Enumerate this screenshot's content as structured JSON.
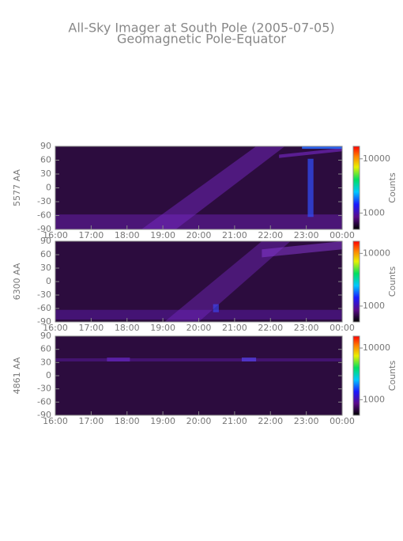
{
  "chart_data": [
    {
      "type": "heatmap",
      "title": "All-Sky Imager at South Pole (2005-07-05)",
      "subtitle": "Geomagnetic Pole-Equator",
      "ylabel": "5577 AA",
      "xlim": [
        16,
        24
      ],
      "xticks": [
        {
          "value": 16,
          "label": "16:00"
        },
        {
          "value": 17,
          "label": "17:00"
        },
        {
          "value": 18,
          "label": "18:00"
        },
        {
          "value": 19,
          "label": "19:00"
        },
        {
          "value": 20,
          "label": "20:00"
        },
        {
          "value": 21,
          "label": "21:00"
        },
        {
          "value": 22,
          "label": "22:00"
        },
        {
          "value": 23,
          "label": "23:00"
        },
        {
          "value": 24,
          "label": "00:00"
        }
      ],
      "ylim": [
        -90,
        90
      ],
      "yticks": [
        -90,
        -60,
        -30,
        0,
        30,
        60,
        90
      ],
      "colorbar": {
        "label": "Counts",
        "scale": "log",
        "lim": [
          500,
          17000
        ],
        "ticks": [
          1000,
          10000
        ]
      }
    },
    {
      "type": "heatmap",
      "ylabel": "6300 AA",
      "xlim": [
        16,
        24
      ],
      "xticks": [
        {
          "value": 16,
          "label": "16:00"
        },
        {
          "value": 17,
          "label": "17:00"
        },
        {
          "value": 18,
          "label": "18:00"
        },
        {
          "value": 19,
          "label": "19:00"
        },
        {
          "value": 20,
          "label": "20:00"
        },
        {
          "value": 21,
          "label": "21:00"
        },
        {
          "value": 22,
          "label": "22:00"
        },
        {
          "value": 23,
          "label": "23:00"
        },
        {
          "value": 24,
          "label": "00:00"
        }
      ],
      "ylim": [
        -90,
        90
      ],
      "yticks": [
        -90,
        -60,
        -30,
        0,
        30,
        60,
        90
      ],
      "colorbar": {
        "label": "Counts",
        "scale": "log",
        "lim": [
          500,
          17000
        ],
        "ticks": [
          1000,
          10000
        ]
      }
    },
    {
      "type": "heatmap",
      "ylabel": "4861 AA",
      "xlim": [
        16,
        24
      ],
      "xticks": [
        {
          "value": 16,
          "label": "16:00"
        },
        {
          "value": 17,
          "label": "17:00"
        },
        {
          "value": 18,
          "label": "18:00"
        },
        {
          "value": 19,
          "label": "19:00"
        },
        {
          "value": 20,
          "label": "20:00"
        },
        {
          "value": 21,
          "label": "21:00"
        },
        {
          "value": 22,
          "label": "22:00"
        },
        {
          "value": 23,
          "label": "23:00"
        },
        {
          "value": 24,
          "label": "00:00"
        }
      ],
      "ylim": [
        -90,
        90
      ],
      "yticks": [
        -90,
        -60,
        -30,
        0,
        30,
        60,
        90
      ],
      "colorbar": {
        "label": "Counts",
        "scale": "log",
        "lim": [
          500,
          17000
        ],
        "ticks": [
          1000,
          10000
        ]
      }
    }
  ]
}
